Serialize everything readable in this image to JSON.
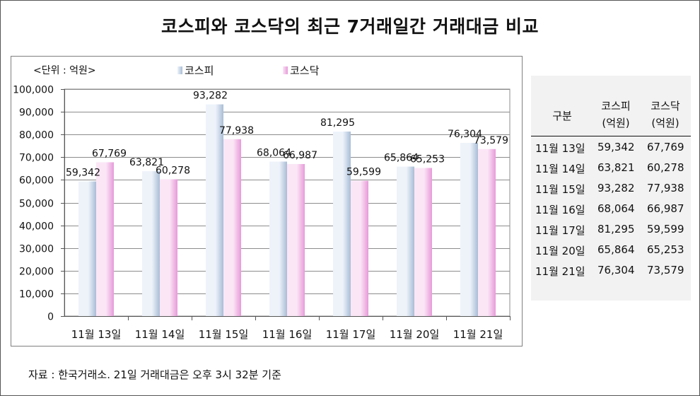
{
  "title": "코스피와 코스닥의 최근 7거래일간 거래대금 비교",
  "unit_label": "<단위 : 억원>",
  "legend": {
    "kospi": "코스피",
    "kosdaq": "코스닥"
  },
  "colors": {
    "kospi_light": "#eef3fa",
    "kospi_dark": "#a9bdd6",
    "kosdaq_light": "#fbe6f6",
    "kosdaq_dark": "#e79ad9",
    "table_bg": "#f2f2f2"
  },
  "chart_data": {
    "type": "bar",
    "categories": [
      "11월 13일",
      "11월 14일",
      "11월 15일",
      "11월 16일",
      "11월 17일",
      "11월 20일",
      "11월 21일"
    ],
    "series": [
      {
        "name": "코스피",
        "values": [
          59342,
          63821,
          93282,
          68064,
          81295,
          65864,
          76304
        ]
      },
      {
        "name": "코스닥",
        "values": [
          67769,
          60278,
          77938,
          66987,
          59599,
          65253,
          73579
        ]
      }
    ],
    "data_labels": {
      "kospi": [
        "59,342",
        "63,821",
        "93,282",
        "68,064",
        "81,295",
        "65,864",
        "76,304"
      ],
      "kosdaq": [
        "67,769",
        "60,278",
        "77,938",
        "66,987",
        "59,599",
        "65,253",
        "73,579"
      ]
    },
    "ylim": [
      0,
      100000
    ],
    "yticks": [
      "0",
      "10,000",
      "20,000",
      "30,000",
      "40,000",
      "50,000",
      "60,000",
      "70,000",
      "80,000",
      "90,000",
      "100,000"
    ],
    "grid": true,
    "legend_position": "top"
  },
  "table": {
    "header": {
      "col1": "구분",
      "col2_line1": "코스피",
      "col2_line2": "(억원)",
      "col3_line1": "코스닥",
      "col3_line2": "(억원)"
    },
    "rows": [
      {
        "date": "11월 13일",
        "kospi": "59,342",
        "kosdaq": "67,769"
      },
      {
        "date": "11월 14일",
        "kospi": "63,821",
        "kosdaq": "60,278"
      },
      {
        "date": "11월 15일",
        "kospi": "93,282",
        "kosdaq": "77,938"
      },
      {
        "date": "11월 16일",
        "kospi": "68,064",
        "kosdaq": "66,987"
      },
      {
        "date": "11월 17일",
        "kospi": "81,295",
        "kosdaq": "59,599"
      },
      {
        "date": "11월 20일",
        "kospi": "65,864",
        "kosdaq": "65,253"
      },
      {
        "date": "11월 21일",
        "kospi": "76,304",
        "kosdaq": "73,579"
      }
    ]
  },
  "source": "자료 : 한국거래소. 21일 거래대금은 오후 3시 32분 기준"
}
